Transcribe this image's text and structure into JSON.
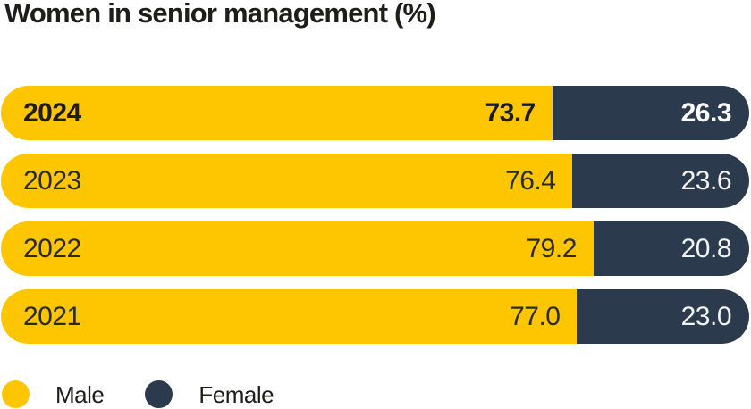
{
  "title": "Women in senior management (%)",
  "colors": {
    "male": "#FEC601",
    "female": "#2B3B4D",
    "title_text": "#1D1D1B",
    "value_on_male": "#1D1D1B",
    "value_on_female": "#FFFFFF",
    "background": "#FFFFFF"
  },
  "chart_data": {
    "type": "bar",
    "orientation": "horizontal",
    "stacked": true,
    "title": "Women in senior management (%)",
    "unit": "%",
    "categories": [
      "2024",
      "2023",
      "2022",
      "2021"
    ],
    "series": [
      {
        "name": "Male",
        "color": "#FEC601",
        "values": [
          73.7,
          76.4,
          79.2,
          77.0
        ]
      },
      {
        "name": "Female",
        "color": "#2B3B4D",
        "values": [
          26.3,
          23.6,
          20.8,
          23.0
        ]
      }
    ],
    "xlim": [
      0,
      100
    ],
    "highlighted_category": "2024",
    "grid": false,
    "legend_position": "bottom-left",
    "rows": [
      {
        "year": "2024",
        "male": "73.7",
        "female": "26.3"
      },
      {
        "year": "2023",
        "male": "76.4",
        "female": "23.6"
      },
      {
        "year": "2022",
        "male": "79.2",
        "female": "20.8"
      },
      {
        "year": "2021",
        "male": "77.0",
        "female": "23.0"
      }
    ]
  },
  "legend": {
    "male_label": "Male",
    "female_label": "Female"
  }
}
